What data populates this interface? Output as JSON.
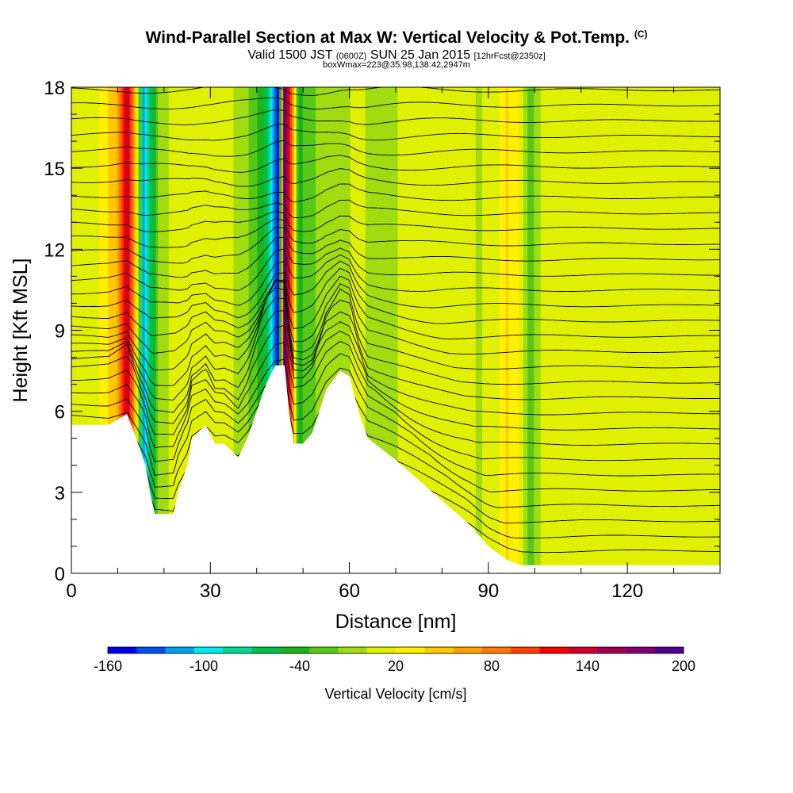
{
  "title": {
    "main": "Wind-Parallel Section at Max W: Vertical Velocity & Pot.Temp.",
    "main_mark": "(C)",
    "valid_a": "Valid 1500 JST ",
    "valid_zulu": "(0600Z)",
    "valid_b": " SUN 25 Jan 2015 ",
    "valid_fcst": "[12hrFcst@2350z]",
    "box": "boxWmax=223@35.98,138.42,2947m"
  },
  "chart_data": {
    "type": "heatmap",
    "xlabel": "Distance [nm]",
    "ylabel": "Height [Kft MSL]",
    "xlim": [
      0,
      140
    ],
    "ylim": [
      0,
      18
    ],
    "x_ticks": [
      "0",
      "30",
      "60",
      "90",
      "120"
    ],
    "y_ticks": [
      "0",
      "3",
      "6",
      "9",
      "12",
      "15",
      "18"
    ],
    "colorbar": {
      "label": "Vertical Velocity [cm/s]",
      "tick_labels": [
        "-160",
        "-100",
        "-40",
        "20",
        "80",
        "140",
        "200"
      ],
      "range": [
        -160,
        200
      ],
      "colors": [
        "#0000f0",
        "#0050f0",
        "#00a0f0",
        "#00ecec",
        "#00d890",
        "#00c050",
        "#18b418",
        "#58c818",
        "#a0dc10",
        "#e0f000",
        "#fff000",
        "#ffc800",
        "#ffa000",
        "#ff7800",
        "#ff4000",
        "#ff0000",
        "#d0002c",
        "#a00050",
        "#800070",
        "#500090"
      ]
    },
    "terrain_height_kft": [
      [
        0,
        5.5
      ],
      [
        8,
        5.5
      ],
      [
        12,
        5.9
      ],
      [
        14,
        5
      ],
      [
        16,
        4
      ],
      [
        17,
        3
      ],
      [
        18,
        2.2
      ],
      [
        22,
        2.2
      ],
      [
        23,
        3
      ],
      [
        25,
        4
      ],
      [
        26,
        5
      ],
      [
        29,
        5.5
      ],
      [
        31,
        4.8
      ],
      [
        33,
        4.8
      ],
      [
        36,
        4.3
      ],
      [
        38,
        5
      ],
      [
        40,
        6
      ],
      [
        42,
        7
      ],
      [
        44,
        7.7
      ],
      [
        46,
        7.7
      ],
      [
        47,
        6
      ],
      [
        48,
        4.8
      ],
      [
        50,
        4.8
      ],
      [
        52,
        5.2
      ],
      [
        55,
        6.8
      ],
      [
        58,
        7.5
      ],
      [
        60,
        7.3
      ],
      [
        62,
        6
      ],
      [
        64,
        5
      ],
      [
        67,
        4.6
      ],
      [
        70,
        4.2
      ],
      [
        74,
        3.6
      ],
      [
        78,
        3
      ],
      [
        82,
        2.4
      ],
      [
        86,
        1.8
      ],
      [
        90,
        1
      ],
      [
        94,
        0.5
      ],
      [
        97,
        0.3
      ],
      [
        140,
        0.3
      ]
    ],
    "w_field_cm_s": [
      {
        "x": 0,
        "w": 20
      },
      {
        "x": 5,
        "w": 10
      },
      {
        "x": 10,
        "w": 60
      },
      {
        "x": 12,
        "w": 150
      },
      {
        "x": 14,
        "w": 40
      },
      {
        "x": 15.5,
        "w": -110
      },
      {
        "x": 17,
        "w": -70
      },
      {
        "x": 19,
        "w": -10
      },
      {
        "x": 23,
        "w": 15
      },
      {
        "x": 28,
        "w": 5
      },
      {
        "x": 33,
        "w": 10
      },
      {
        "x": 37,
        "w": -5
      },
      {
        "x": 40,
        "w": -30
      },
      {
        "x": 43,
        "w": -80
      },
      {
        "x": 44.5,
        "w": -160
      },
      {
        "x": 46,
        "w": 190
      },
      {
        "x": 47.5,
        "w": 100
      },
      {
        "x": 49,
        "w": -40
      },
      {
        "x": 52,
        "w": -20
      },
      {
        "x": 55,
        "w": 0
      },
      {
        "x": 58,
        "w": -10
      },
      {
        "x": 62,
        "w": 10
      },
      {
        "x": 66,
        "w": -10
      },
      {
        "x": 70,
        "w": 0
      },
      {
        "x": 74,
        "w": 20
      },
      {
        "x": 78,
        "w": 15
      },
      {
        "x": 84,
        "w": 10
      },
      {
        "x": 88,
        "w": 0
      },
      {
        "x": 92,
        "w": 15
      },
      {
        "x": 94,
        "w": 40
      },
      {
        "x": 96,
        "w": 30
      },
      {
        "x": 99,
        "w": -30
      },
      {
        "x": 102,
        "w": 10
      },
      {
        "x": 106,
        "w": 5
      },
      {
        "x": 110,
        "w": 15
      },
      {
        "x": 115,
        "w": 10
      },
      {
        "x": 120,
        "w": 5
      },
      {
        "x": 125,
        "w": 15
      },
      {
        "x": 130,
        "w": 10
      },
      {
        "x": 135,
        "w": 5
      },
      {
        "x": 140,
        "w": 5
      }
    ],
    "theta_contour_levels_c": [
      -10,
      -8,
      -6,
      -4,
      -2,
      0,
      2,
      4,
      6,
      8,
      10,
      12,
      14,
      16,
      18,
      20,
      22,
      24,
      26,
      28,
      30,
      32,
      34,
      36,
      38,
      40,
      42,
      44,
      46,
      48,
      50
    ]
  }
}
